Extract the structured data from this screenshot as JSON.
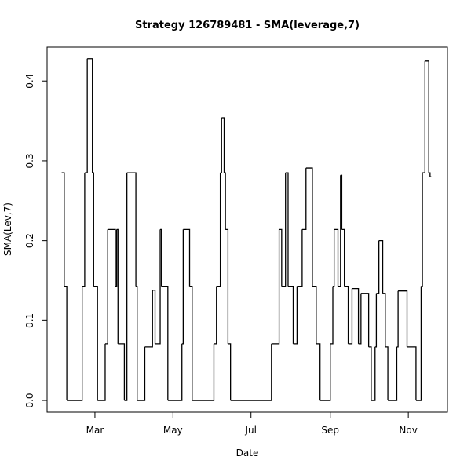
{
  "chart_data": {
    "type": "step",
    "title": "Strategy 126789481 - SMA(leverage,7)",
    "x_label": "Date",
    "y_label": "SMA(Lev,7)",
    "x": [
      33,
      35,
      37,
      49,
      51,
      53,
      57,
      58,
      61,
      67,
      69,
      75,
      76,
      77,
      82,
      84,
      91,
      92,
      98,
      104,
      106,
      110,
      111,
      116,
      127,
      128,
      133,
      135,
      152,
      154,
      157,
      158,
      160,
      161,
      163,
      165,
      197,
      203,
      205,
      208,
      210,
      214,
      217,
      221,
      224,
      229,
      232,
      235,
      243,
      245,
      246,
      249,
      251,
      252,
      254,
      257,
      260,
      265,
      267,
      273,
      275,
      278,
      279,
      281,
      284,
      286,
      288,
      295,
      296,
      303,
      310,
      314,
      315,
      317,
      320,
      321,
      322
    ],
    "values": [
      0.285,
      0.143,
      0,
      0.143,
      0.285,
      0.428,
      0.285,
      0.143,
      0,
      0.071,
      0.214,
      0.143,
      0.214,
      0.071,
      0,
      0.285,
      0.143,
      0,
      0.067,
      0.138,
      0.071,
      0.214,
      0.143,
      0,
      0.071,
      0.214,
      0.143,
      0,
      0.071,
      0.143,
      0.285,
      0.354,
      0.285,
      0.214,
      0.071,
      0,
      0.071,
      0.214,
      0.143,
      0.285,
      0.143,
      0.071,
      0.143,
      0.214,
      0.291,
      0.143,
      0.071,
      0,
      0.071,
      0.143,
      0.214,
      0.143,
      0.282,
      0.214,
      0.143,
      0.071,
      0.14,
      0.071,
      0.134,
      0.067,
      0,
      0.067,
      0.134,
      0.2,
      0.134,
      0.067,
      0,
      0.067,
      0.137,
      0.067,
      0,
      0.143,
      0.285,
      0.425,
      0.285,
      0.28,
      0.28
    ],
    "color": "#000000",
    "xlim": [
      21.6,
      334.6
    ],
    "xticks": [
      {
        "value": 59,
        "label": "Mar"
      },
      {
        "value": 120,
        "label": "May"
      },
      {
        "value": 181,
        "label": "Jul"
      },
      {
        "value": 243,
        "label": "Sep"
      },
      {
        "value": 304,
        "label": "Nov"
      }
    ],
    "ylim": [
      -0.0147,
      0.4425
    ],
    "yticks": [
      {
        "value": 0,
        "label": "0.0"
      },
      0.1,
      0.2,
      0.3,
      0.4
    ]
  }
}
